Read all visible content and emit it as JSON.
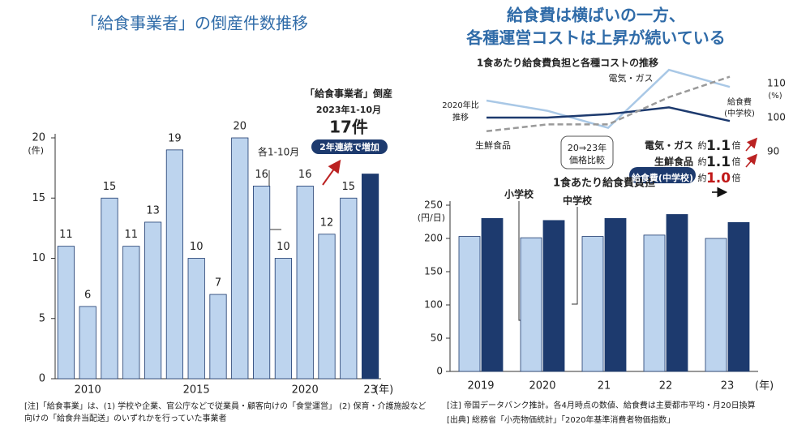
{
  "chart_data": [
    {
      "type": "bar",
      "title": "「給食事業者」の倒産件数推移",
      "categories": [
        null,
        "2010",
        null,
        null,
        null,
        null,
        "2015",
        null,
        null,
        null,
        null,
        "2020",
        null,
        null,
        "23"
      ],
      "x_unit": "(年)",
      "y_unit": "(件)",
      "values": [
        11,
        6,
        15,
        11,
        13,
        19,
        10,
        7,
        20,
        16,
        10,
        16,
        12,
        15,
        17
      ],
      "value_labels": [
        "11",
        "6",
        "15",
        "11",
        "13",
        "19",
        "10",
        "7",
        "20",
        "16",
        "10",
        "16",
        "12",
        "15",
        null
      ],
      "colors": [
        "#bdd4ee",
        "#bdd4ee",
        "#bdd4ee",
        "#bdd4ee",
        "#bdd4ee",
        "#bdd4ee",
        "#bdd4ee",
        "#bdd4ee",
        "#bdd4ee",
        "#bdd4ee",
        "#bdd4ee",
        "#bdd4ee",
        "#bdd4ee",
        "#bdd4ee",
        "#1d3a6e"
      ],
      "ylim": [
        0,
        20
      ],
      "yticks": [
        0,
        5,
        10,
        15,
        20
      ],
      "annotations": {
        "period": "各1-10月",
        "head": "「給食事業者」倒産",
        "range": "2023年1-10月",
        "count": "17件",
        "badge": "2年連続で増加"
      },
      "notes": [
        "[注]「給食事業」は、(1) 学校や企業、官公庁などで従業員・顧客向けの「食堂運営」 (2) 保育・介護施設など",
        "向けの「給食弁当配送」のいずれかを行っていた事業者"
      ]
    },
    {
      "type": "grouped-bar",
      "title": [
        "給食費は横ばいの一方、",
        "各種運営コストは上昇が続いている"
      ],
      "subtitle": "1食あたり給食費負担",
      "y_unit": "(円/日)",
      "x_unit": "(年)",
      "categories": [
        "2019",
        "2020",
        "21",
        "22",
        "23"
      ],
      "series": [
        {
          "name": "小学校",
          "color": "#bdd4ee",
          "values": [
            203,
            201,
            203,
            205,
            200
          ]
        },
        {
          "name": "中学校",
          "color": "#1d3a6e",
          "values": [
            230,
            227,
            230,
            236,
            224
          ]
        }
      ],
      "ylim": [
        0,
        250
      ],
      "yticks": [
        0,
        50,
        100,
        150,
        200,
        250
      ],
      "notes": [
        "[注] 帝国データバンク推計。各4月時点の数値、給食費は主要都市平均・月20日換算",
        "[出典] 総務省「小売物価統計」「2020年基準消費者物価指数」"
      ]
    },
    {
      "type": "line",
      "title": "1食あたり給食費負担と各種コストの推移",
      "y_label": [
        "2020年比",
        "推移"
      ],
      "y_unit": "(%)",
      "series": [
        {
          "name": "電気・ガス",
          "color": "#a9c8e6",
          "dash": false,
          "values": [
            105,
            102,
            97,
            114,
            109
          ]
        },
        {
          "name": "給食費(中学校)",
          "label_lines": [
            "給食費",
            "(中学校)"
          ],
          "color": "#1d3a6e",
          "dash": false,
          "values": [
            100,
            100,
            101,
            103,
            99
          ]
        },
        {
          "name": "生鮮食品",
          "color": "#9a9a9a",
          "dash": true,
          "values": [
            96,
            98,
            98,
            106,
            112
          ]
        }
      ],
      "ylim": [
        80,
        120
      ],
      "yticks": [
        90,
        100,
        110
      ],
      "compare_title": [
        "20⇒23年",
        "価格比較"
      ],
      "compare": [
        {
          "item": "電気・ガス",
          "approx": "約",
          "ratio": "1.1",
          "unit": "倍"
        },
        {
          "item": "生鮮食品",
          "approx": "約",
          "ratio": "1.1",
          "unit": "倍"
        },
        {
          "item": "給食費(中学校)",
          "approx": "約",
          "ratio": "1.0",
          "unit": "倍"
        }
      ]
    }
  ]
}
